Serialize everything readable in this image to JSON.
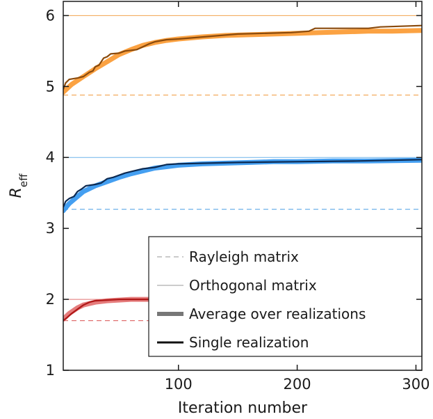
{
  "chart_data": {
    "type": "line",
    "xlabel": "Iteration number",
    "ylabel_main": "R",
    "ylabel_sub": "eff",
    "xlim": [
      3,
      305
    ],
    "ylim": [
      1,
      6.2
    ],
    "xticks": [
      100,
      200,
      300
    ],
    "xtick_labels": [
      "100",
      "200",
      "300"
    ],
    "yticks": [
      1,
      2,
      3,
      4,
      5,
      6
    ],
    "ytick_labels": [
      "1",
      "2",
      "3",
      "4",
      "5",
      "6"
    ],
    "grid": false,
    "legend": {
      "placement": "lower-right",
      "entries": [
        {
          "label": "Rayleigh matrix",
          "style": "dashed"
        },
        {
          "label": "Orthogonal matrix",
          "style": "thin"
        },
        {
          "label": "Average over realizations",
          "style": "thick-gray"
        },
        {
          "label": "Single realization",
          "style": "black"
        }
      ]
    },
    "groups": [
      {
        "key": "orange",
        "rayleigh": 4.88,
        "orthogonal": 6.0,
        "ref_color": "#f2a34e",
        "avg_color": "#fb9d38",
        "single_color": "#8a4a0c",
        "average": [
          [
            3,
            4.92
          ],
          [
            10,
            5.03
          ],
          [
            20,
            5.14
          ],
          [
            30,
            5.25
          ],
          [
            40,
            5.35
          ],
          [
            50,
            5.45
          ],
          [
            60,
            5.52
          ],
          [
            70,
            5.58
          ],
          [
            80,
            5.62
          ],
          [
            90,
            5.65
          ],
          [
            100,
            5.67
          ],
          [
            120,
            5.7
          ],
          [
            140,
            5.72
          ],
          [
            160,
            5.73
          ],
          [
            180,
            5.74
          ],
          [
            200,
            5.75
          ],
          [
            220,
            5.76
          ],
          [
            240,
            5.77
          ],
          [
            260,
            5.78
          ],
          [
            280,
            5.78
          ],
          [
            305,
            5.79
          ]
        ],
        "single": [
          [
            3,
            4.96
          ],
          [
            5,
            5.05
          ],
          [
            8,
            5.1
          ],
          [
            15,
            5.12
          ],
          [
            20,
            5.14
          ],
          [
            25,
            5.2
          ],
          [
            28,
            5.22
          ],
          [
            30,
            5.28
          ],
          [
            33,
            5.3
          ],
          [
            37,
            5.4
          ],
          [
            40,
            5.42
          ],
          [
            43,
            5.46
          ],
          [
            50,
            5.47
          ],
          [
            55,
            5.5
          ],
          [
            65,
            5.52
          ],
          [
            70,
            5.56
          ],
          [
            75,
            5.6
          ],
          [
            80,
            5.63
          ],
          [
            90,
            5.66
          ],
          [
            100,
            5.67
          ],
          [
            150,
            5.74
          ],
          [
            195,
            5.76
          ],
          [
            210,
            5.78
          ],
          [
            215,
            5.82
          ],
          [
            260,
            5.82
          ],
          [
            270,
            5.84
          ],
          [
            305,
            5.86
          ]
        ]
      },
      {
        "key": "blue",
        "rayleigh": 3.27,
        "orthogonal": 4.0,
        "ref_color": "#6fb3ea",
        "avg_color": "#3a9af0",
        "single_color": "#0c2a52",
        "average": [
          [
            3,
            3.25
          ],
          [
            8,
            3.35
          ],
          [
            15,
            3.45
          ],
          [
            20,
            3.52
          ],
          [
            30,
            3.6
          ],
          [
            40,
            3.66
          ],
          [
            50,
            3.72
          ],
          [
            60,
            3.77
          ],
          [
            70,
            3.81
          ],
          [
            80,
            3.85
          ],
          [
            90,
            3.87
          ],
          [
            100,
            3.89
          ],
          [
            120,
            3.91
          ],
          [
            140,
            3.92
          ],
          [
            160,
            3.93
          ],
          [
            180,
            3.94
          ],
          [
            200,
            3.94
          ],
          [
            230,
            3.95
          ],
          [
            260,
            3.95
          ],
          [
            305,
            3.96
          ]
        ],
        "single": [
          [
            3,
            3.3
          ],
          [
            5,
            3.38
          ],
          [
            8,
            3.42
          ],
          [
            12,
            3.45
          ],
          [
            15,
            3.52
          ],
          [
            18,
            3.55
          ],
          [
            22,
            3.6
          ],
          [
            30,
            3.62
          ],
          [
            35,
            3.64
          ],
          [
            40,
            3.7
          ],
          [
            45,
            3.72
          ],
          [
            55,
            3.78
          ],
          [
            60,
            3.8
          ],
          [
            70,
            3.84
          ],
          [
            80,
            3.86
          ],
          [
            90,
            3.9
          ],
          [
            100,
            3.91
          ],
          [
            150,
            3.93
          ],
          [
            200,
            3.94
          ],
          [
            250,
            3.95
          ],
          [
            305,
            3.97
          ]
        ]
      },
      {
        "key": "red",
        "rayleigh": 1.7,
        "orthogonal": 2.0,
        "ref_color": "#e07070",
        "avg_color": "#e47575",
        "single_color": "#b01818",
        "average": [
          [
            3,
            1.72
          ],
          [
            8,
            1.8
          ],
          [
            15,
            1.88
          ],
          [
            20,
            1.92
          ],
          [
            30,
            1.96
          ],
          [
            40,
            1.98
          ],
          [
            50,
            1.99
          ],
          [
            60,
            2.0
          ],
          [
            80,
            2.0
          ],
          [
            305,
            2.0
          ]
        ],
        "single": [
          [
            3,
            1.7
          ],
          [
            6,
            1.74
          ],
          [
            10,
            1.8
          ],
          [
            15,
            1.86
          ],
          [
            20,
            1.92
          ],
          [
            25,
            1.96
          ],
          [
            30,
            1.98
          ],
          [
            40,
            1.99
          ],
          [
            50,
            2.0
          ],
          [
            305,
            2.0
          ]
        ]
      }
    ]
  }
}
